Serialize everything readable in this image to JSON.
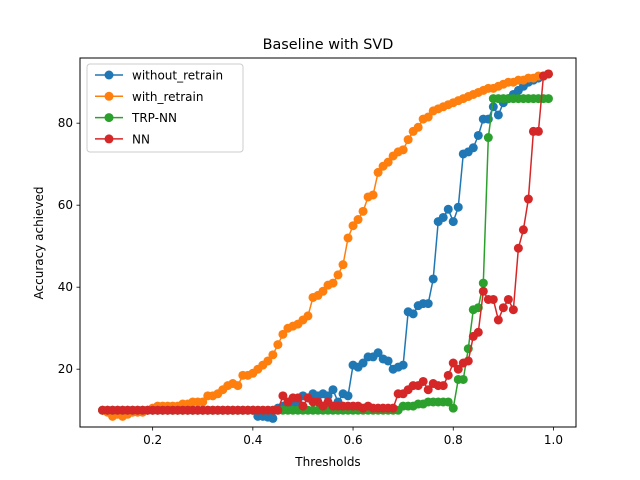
{
  "chart_data": {
    "type": "line",
    "title": "Baseline with SVD",
    "xlabel": "Thresholds",
    "ylabel": "Accuracy achieved",
    "xlim": [
      0.055,
      1.045
    ],
    "ylim": [
      5.9,
      95.9
    ],
    "xticks": [
      0.2,
      0.4,
      0.6,
      0.8,
      1.0
    ],
    "xtick_labels": [
      "0.2",
      "0.4",
      "0.6",
      "0.8",
      "1.0"
    ],
    "yticks": [
      20,
      40,
      60,
      80
    ],
    "ytick_labels": [
      "20",
      "40",
      "60",
      "80"
    ],
    "grid": false,
    "legend_position": "upper-left",
    "marker": "circle",
    "series": [
      {
        "name": "without_retrain",
        "color": "#1f77b4",
        "x": [
          0.1,
          0.11,
          0.12,
          0.13,
          0.14,
          0.15,
          0.16,
          0.17,
          0.18,
          0.19,
          0.2,
          0.21,
          0.22,
          0.23,
          0.24,
          0.25,
          0.26,
          0.27,
          0.28,
          0.29,
          0.3,
          0.31,
          0.32,
          0.33,
          0.34,
          0.35,
          0.36,
          0.37,
          0.38,
          0.39,
          0.4,
          0.41,
          0.42,
          0.43,
          0.44,
          0.45,
          0.46,
          0.47,
          0.48,
          0.49,
          0.5,
          0.51,
          0.52,
          0.53,
          0.54,
          0.55,
          0.56,
          0.57,
          0.58,
          0.59,
          0.6,
          0.61,
          0.62,
          0.63,
          0.64,
          0.65,
          0.66,
          0.67,
          0.68,
          0.69,
          0.7,
          0.71,
          0.72,
          0.73,
          0.74,
          0.75,
          0.76,
          0.77,
          0.78,
          0.79,
          0.8,
          0.81,
          0.82,
          0.83,
          0.84,
          0.85,
          0.86,
          0.87,
          0.88,
          0.89,
          0.9,
          0.91,
          0.92,
          0.93,
          0.94,
          0.95,
          0.96,
          0.97,
          0.98,
          0.99
        ],
        "y": [
          10,
          10,
          10,
          10,
          10,
          10,
          10,
          10,
          10,
          10,
          10,
          10,
          10,
          10,
          10,
          10,
          10,
          10,
          10,
          10,
          10,
          10,
          10,
          10,
          10,
          10,
          10,
          10,
          10,
          10,
          10,
          8.5,
          8.5,
          8.3,
          8,
          10.5,
          11,
          11,
          11.5,
          12,
          13.5,
          13,
          14,
          13.5,
          14,
          13.5,
          15,
          12,
          14,
          13.5,
          21,
          20.5,
          21.5,
          23,
          23,
          24,
          22.5,
          22,
          20,
          20.5,
          21,
          34,
          33.5,
          35.5,
          36,
          36,
          42,
          56,
          57,
          59,
          56,
          59.5,
          72.5,
          73,
          74,
          77,
          81,
          81,
          84,
          82,
          85,
          86,
          87,
          88,
          89,
          90,
          90.5,
          91,
          91.5,
          92
        ]
      },
      {
        "name": "with_retrain",
        "color": "#ff7f0e",
        "x": [
          0.1,
          0.11,
          0.12,
          0.13,
          0.14,
          0.15,
          0.16,
          0.17,
          0.18,
          0.19,
          0.2,
          0.21,
          0.22,
          0.23,
          0.24,
          0.25,
          0.26,
          0.27,
          0.28,
          0.29,
          0.3,
          0.31,
          0.32,
          0.33,
          0.34,
          0.35,
          0.36,
          0.37,
          0.38,
          0.39,
          0.4,
          0.41,
          0.42,
          0.43,
          0.44,
          0.45,
          0.46,
          0.47,
          0.48,
          0.49,
          0.5,
          0.51,
          0.52,
          0.53,
          0.54,
          0.55,
          0.56,
          0.57,
          0.58,
          0.59,
          0.6,
          0.61,
          0.62,
          0.63,
          0.64,
          0.65,
          0.66,
          0.67,
          0.68,
          0.69,
          0.7,
          0.71,
          0.72,
          0.73,
          0.74,
          0.75,
          0.76,
          0.77,
          0.78,
          0.79,
          0.8,
          0.81,
          0.82,
          0.83,
          0.84,
          0.85,
          0.86,
          0.87,
          0.88,
          0.89,
          0.9,
          0.91,
          0.92,
          0.93,
          0.94,
          0.95,
          0.96,
          0.97,
          0.98,
          0.99
        ],
        "y": [
          10,
          9.5,
          8.5,
          9,
          8.5,
          9,
          9.5,
          9.5,
          9.5,
          10,
          10.5,
          11,
          11,
          11,
          11,
          11,
          11.5,
          11.5,
          12,
          12,
          12,
          13.5,
          13.5,
          14,
          15,
          16,
          16.5,
          16,
          18.5,
          18.5,
          19,
          20,
          21,
          22,
          23.5,
          26,
          28.5,
          30,
          30.5,
          31,
          32,
          33,
          37.5,
          38,
          39,
          40.5,
          41,
          43,
          45.5,
          52,
          55,
          56.5,
          58.5,
          62,
          62.5,
          68,
          69.5,
          70.5,
          72,
          73,
          73.5,
          76,
          78,
          79,
          81,
          81.5,
          83,
          83.5,
          84,
          84.5,
          85,
          85.5,
          86,
          86.5,
          87,
          87.5,
          88,
          88.5,
          88.5,
          89,
          89.5,
          90,
          90,
          90.5,
          90.5,
          91,
          91,
          91.5,
          91.5,
          92
        ]
      },
      {
        "name": "TRP-NN",
        "color": "#2ca02c",
        "x": [
          0.1,
          0.11,
          0.12,
          0.13,
          0.14,
          0.15,
          0.16,
          0.17,
          0.18,
          0.19,
          0.2,
          0.21,
          0.22,
          0.23,
          0.24,
          0.25,
          0.26,
          0.27,
          0.28,
          0.29,
          0.3,
          0.31,
          0.32,
          0.33,
          0.34,
          0.35,
          0.36,
          0.37,
          0.38,
          0.39,
          0.4,
          0.41,
          0.42,
          0.43,
          0.44,
          0.45,
          0.46,
          0.47,
          0.48,
          0.49,
          0.5,
          0.51,
          0.52,
          0.53,
          0.54,
          0.55,
          0.56,
          0.57,
          0.58,
          0.59,
          0.6,
          0.61,
          0.62,
          0.63,
          0.64,
          0.65,
          0.66,
          0.67,
          0.68,
          0.69,
          0.7,
          0.71,
          0.72,
          0.73,
          0.74,
          0.75,
          0.76,
          0.77,
          0.78,
          0.79,
          0.8,
          0.81,
          0.82,
          0.83,
          0.84,
          0.85,
          0.86,
          0.87,
          0.88,
          0.89,
          0.9,
          0.91,
          0.92,
          0.93,
          0.94,
          0.95,
          0.96,
          0.97,
          0.98,
          0.99
        ],
        "y": [
          10,
          10,
          10,
          10,
          10,
          10,
          10,
          10,
          10,
          10,
          10,
          10,
          10,
          10,
          10,
          10,
          10,
          10,
          10,
          10,
          10,
          10,
          10,
          10,
          10,
          10,
          10,
          10,
          10,
          10,
          10,
          10,
          10,
          10,
          10,
          10,
          10,
          10,
          10,
          10,
          10,
          10,
          10,
          10,
          10,
          10,
          10,
          10,
          10,
          10,
          10,
          10,
          10,
          10,
          10,
          10,
          10,
          10,
          10,
          10,
          11,
          11,
          11,
          11.5,
          11.5,
          12,
          12,
          12,
          12,
          12,
          10.5,
          17.5,
          17.5,
          25,
          34.5,
          35,
          41,
          76.5,
          86,
          86,
          86,
          86,
          86,
          86,
          86,
          86,
          86,
          86,
          86,
          86
        ]
      },
      {
        "name": "NN",
        "color": "#d62728",
        "x": [
          0.1,
          0.11,
          0.12,
          0.13,
          0.14,
          0.15,
          0.16,
          0.17,
          0.18,
          0.19,
          0.2,
          0.21,
          0.22,
          0.23,
          0.24,
          0.25,
          0.26,
          0.27,
          0.28,
          0.29,
          0.3,
          0.31,
          0.32,
          0.33,
          0.34,
          0.35,
          0.36,
          0.37,
          0.38,
          0.39,
          0.4,
          0.41,
          0.42,
          0.43,
          0.44,
          0.45,
          0.46,
          0.47,
          0.48,
          0.49,
          0.5,
          0.51,
          0.52,
          0.53,
          0.54,
          0.55,
          0.56,
          0.57,
          0.58,
          0.59,
          0.6,
          0.61,
          0.62,
          0.63,
          0.64,
          0.65,
          0.66,
          0.67,
          0.68,
          0.69,
          0.7,
          0.71,
          0.72,
          0.73,
          0.74,
          0.75,
          0.76,
          0.77,
          0.78,
          0.79,
          0.8,
          0.81,
          0.82,
          0.83,
          0.84,
          0.85,
          0.86,
          0.87,
          0.88,
          0.89,
          0.9,
          0.91,
          0.92,
          0.93,
          0.94,
          0.95,
          0.96,
          0.97,
          0.98,
          0.99
        ],
        "y": [
          10,
          10,
          10,
          10,
          10,
          10,
          10,
          10,
          10,
          10,
          10,
          10,
          10,
          10,
          10,
          10,
          10,
          10,
          10,
          10,
          10,
          10,
          10,
          10,
          10,
          10,
          10,
          10,
          10,
          10,
          10,
          10,
          10,
          10,
          10,
          10,
          13.5,
          12,
          13,
          13,
          11,
          13,
          12,
          12,
          11,
          12,
          11,
          11,
          11,
          11,
          11,
          11,
          10.5,
          11,
          10.5,
          10.5,
          10.5,
          10.5,
          10.5,
          14,
          14,
          15,
          16,
          16,
          17,
          15,
          16.5,
          16,
          16,
          18.5,
          21.5,
          20,
          21.5,
          22,
          28,
          29,
          39,
          37,
          37,
          32,
          35,
          37,
          34.5,
          49.5,
          54,
          61.5,
          78,
          78,
          91.5,
          92
        ]
      }
    ]
  }
}
